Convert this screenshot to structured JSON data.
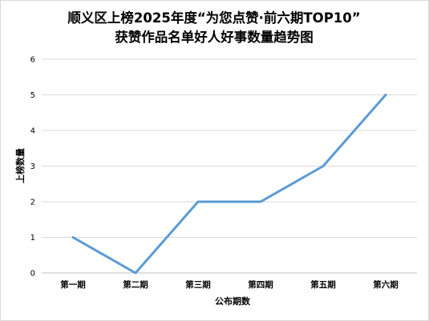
{
  "chart_data": {
    "type": "line",
    "title": "顺义区上榜2025年度“为您点赞·前六期TOP10”",
    "subtitle": "获赞作品名单好人好事数量趋势图",
    "xlabel": "公布期数",
    "ylabel": "上榜数量",
    "categories": [
      "第一期",
      "第二期",
      "第三期",
      "第四期",
      "第五期",
      "第六期"
    ],
    "yticks": [
      "0",
      "1",
      "2",
      "3",
      "4",
      "5",
      "6"
    ],
    "ylim": [
      0,
      6
    ],
    "grid": true,
    "legend": "none",
    "series": [
      {
        "values": [
          1,
          0,
          2,
          2,
          3,
          5
        ],
        "color": "#5b9bd5"
      }
    ]
  }
}
